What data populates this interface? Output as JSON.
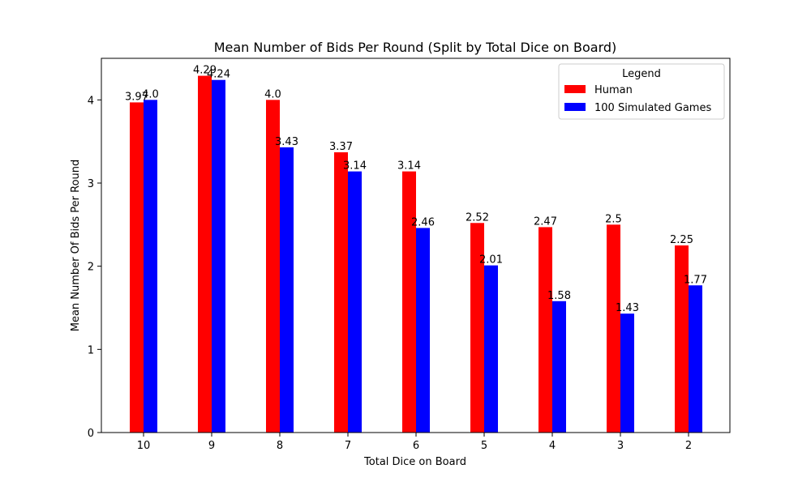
{
  "chart_data": {
    "type": "bar",
    "title": "Mean Number of Bids Per Round (Split by Total Dice on Board)",
    "xlabel": "Total Dice on Board",
    "ylabel": "Mean Number Of Bids Per Round",
    "categories": [
      "10",
      "9",
      "8",
      "7",
      "6",
      "5",
      "4",
      "3",
      "2"
    ],
    "ylim": [
      0,
      4.5
    ],
    "yticks": [
      0,
      1,
      2,
      3,
      4
    ],
    "grid": false,
    "legend": {
      "title": "Legend",
      "position": "top-right"
    },
    "series": [
      {
        "name": "Human",
        "color": "#ff0000",
        "values": [
          3.97,
          4.29,
          4.0,
          3.37,
          3.14,
          2.52,
          2.47,
          2.5,
          2.25
        ],
        "labels": [
          "3.97",
          "4.29",
          "4.0",
          "3.37",
          "3.14",
          "2.52",
          "2.47",
          "2.5",
          "2.25"
        ]
      },
      {
        "name": "100 Simulated Games",
        "color": "#0000ff",
        "values": [
          4.0,
          4.24,
          3.43,
          3.14,
          2.46,
          2.01,
          1.58,
          1.43,
          1.77
        ],
        "labels": [
          "4.0",
          "4.24",
          "3.43",
          "3.14",
          "2.46",
          "2.01",
          "1.58",
          "1.43",
          "1.77"
        ]
      }
    ]
  }
}
